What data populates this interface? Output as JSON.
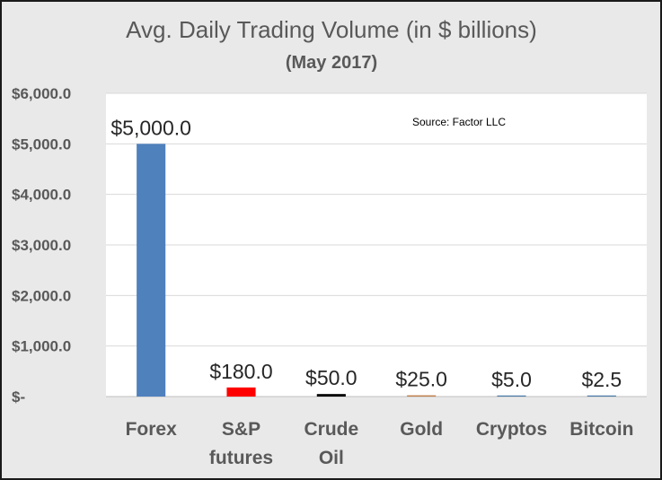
{
  "chart_data": {
    "type": "bar",
    "title": "Avg. Daily Trading Volume (in $ billions)",
    "subtitle": "(May 2017)",
    "source": "Source: Factor LLC",
    "categories": [
      [
        "Forex"
      ],
      [
        "S&P",
        "futures"
      ],
      [
        "Crude",
        "Oil"
      ],
      [
        "Gold"
      ],
      [
        "Cryptos"
      ],
      [
        "Bitcoin"
      ]
    ],
    "values": [
      5000.0,
      180.0,
      50.0,
      25.0,
      5.0,
      2.5
    ],
    "data_labels": [
      "$5,000.0",
      "$180.0",
      "$50.0",
      "$25.0",
      "$5.0",
      "$2.5"
    ],
    "colors": [
      "#4f81bd",
      "#ff0000",
      "#000000",
      "#c0804c",
      "#4a7ba7",
      "#4a7ba7"
    ],
    "ylim": [
      0,
      6000
    ],
    "yticks": [
      0,
      1000,
      2000,
      3000,
      4000,
      5000,
      6000
    ],
    "ytick_labels": [
      "$-",
      "$1,000.0",
      "$2,000.0",
      "$3,000.0",
      "$4,000.0",
      "$5,000.0",
      "$6,000.0"
    ],
    "grid": true,
    "legend": "none"
  }
}
